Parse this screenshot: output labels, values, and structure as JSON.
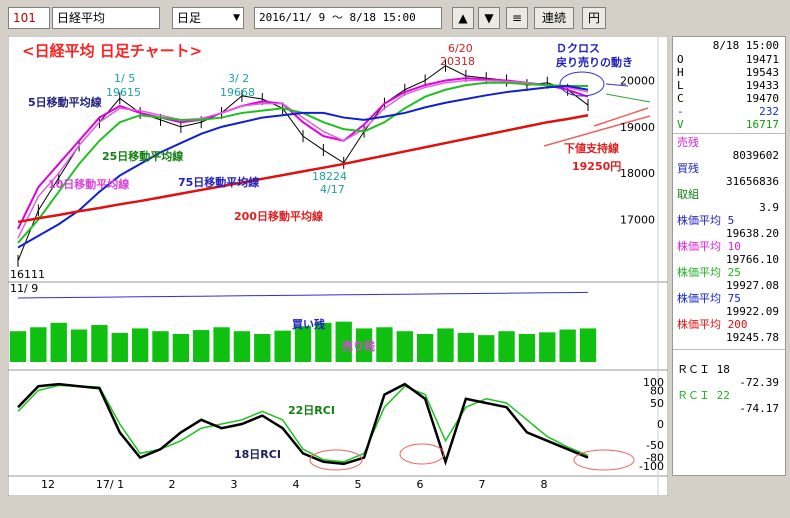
{
  "toolbar": {
    "code": "101",
    "name": "日経平均",
    "period": "日足",
    "date_range": "2016/11/ 9 ～  8/18 15:00",
    "up_icon": "triangle-up-icon",
    "down_icon": "triangle-down-icon",
    "menu_icon": "hamburger-icon",
    "continuous_label": "連続",
    "yen_label": "円"
  },
  "colors": {
    "ma5": "#e000e0",
    "ma25": "#20c020",
    "ma75": "#1020d0",
    "ma200": "#e01010",
    "price": "#000000",
    "annotation": "#f06060"
  },
  "chart_data": {
    "type": "line",
    "title": "<日経平均  日足チャート>",
    "ylim": [
      16000,
      20700
    ],
    "y_ticks": [
      "20000",
      "19000",
      "18000",
      "17000"
    ],
    "x_ticks": [
      "12",
      "17/ 1",
      "2",
      "3",
      "4",
      "5",
      "6",
      "7",
      "8"
    ],
    "rci_ticks": [
      "100",
      "80",
      "50",
      "0",
      "-50",
      "-80",
      "-100"
    ],
    "series": [
      {
        "name": "5日移動平均線",
        "values": [
          16800,
          17700,
          18200,
          18700,
          19200,
          19450,
          19300,
          19200,
          19100,
          19150,
          19300,
          19450,
          19550,
          19500,
          19100,
          18800,
          18700,
          19050,
          19500,
          19750,
          19900,
          20000,
          20050,
          20020,
          20000,
          19950,
          19900,
          19800,
          19650
        ]
      },
      {
        "name": "10日移動平均線",
        "values": [
          16600,
          17500,
          18000,
          18600,
          19100,
          19400,
          19350,
          19250,
          19150,
          19180,
          19300,
          19450,
          19500,
          19500,
          19200,
          18900,
          18700,
          18950,
          19400,
          19700,
          19850,
          19950,
          20000,
          20000,
          19980,
          19950,
          19900,
          19850,
          19750
        ]
      },
      {
        "name": "25日移動平均線",
        "values": [
          16500,
          17000,
          17600,
          18200,
          18700,
          19100,
          19250,
          19200,
          19150,
          19150,
          19200,
          19300,
          19350,
          19400,
          19300,
          19100,
          18950,
          18900,
          19100,
          19400,
          19650,
          19800,
          19900,
          19950,
          19950,
          19920,
          19900,
          19880,
          19880
        ]
      },
      {
        "name": "75日移動平均線",
        "values": [
          16400,
          16650,
          16900,
          17200,
          17600,
          17950,
          18200,
          18450,
          18650,
          18850,
          19000,
          19100,
          19200,
          19250,
          19300,
          19300,
          19200,
          19150,
          19220,
          19300,
          19420,
          19520,
          19600,
          19680,
          19750,
          19800,
          19850,
          19880,
          19800
        ]
      },
      {
        "name": "200日移動平均線",
        "values": [
          16950,
          17030,
          17100,
          17180,
          17250,
          17330,
          17400,
          17480,
          17560,
          17640,
          17720,
          17800,
          17880,
          17960,
          18040,
          18120,
          18200,
          18290,
          18380,
          18470,
          18560,
          18650,
          18740,
          18830,
          18920,
          19010,
          19100,
          19170,
          19250
        ]
      }
    ],
    "price": [
      16111,
      17200,
      17900,
      18600,
      19100,
      19615,
      19300,
      19150,
      19000,
      19100,
      19300,
      19668,
      19600,
      19400,
      18800,
      18500,
      18224,
      18900,
      19500,
      19800,
      20000,
      20318,
      20100,
      20050,
      20000,
      19900,
      19950,
      19800,
      19470
    ],
    "volume": [
      0.55,
      0.62,
      0.7,
      0.58,
      0.66,
      0.52,
      0.6,
      0.55,
      0.5,
      0.57,
      0.62,
      0.55,
      0.5,
      0.56,
      0.64,
      0.7,
      0.72,
      0.6,
      0.62,
      0.55,
      0.5,
      0.6,
      0.52,
      0.48,
      0.55,
      0.5,
      0.53,
      0.58,
      0.6
    ],
    "rci18": [
      40,
      90,
      95,
      90,
      85,
      -20,
      -80,
      -60,
      -20,
      10,
      -10,
      0,
      20,
      -10,
      -70,
      -90,
      -95,
      -80,
      70,
      95,
      60,
      -90,
      60,
      50,
      40,
      -20,
      -40,
      -60,
      -80
    ],
    "rci22": [
      30,
      80,
      92,
      90,
      88,
      0,
      -70,
      -60,
      -40,
      -10,
      0,
      10,
      30,
      10,
      -60,
      -85,
      -90,
      -70,
      40,
      90,
      70,
      -40,
      40,
      60,
      50,
      10,
      -30,
      -55,
      -75
    ],
    "labels": {
      "ma5": "5日移動平均線",
      "ma10": "10日移動平均線",
      "ma25": "25日移動平均線",
      "ma75": "75日移動平均線",
      "ma200": "200日移動平均線",
      "buy": "買い残",
      "sell": "売り残",
      "rci22": "22日RCI",
      "rci18": "18日RCI",
      "dcross": "Ｄクロス",
      "sell_back": "戻り売りの動き",
      "support_line": "下値支持線",
      "support_price": "19250円",
      "peak1_date": "1/ 5",
      "peak1_value": "19615",
      "peak2_date": "3/ 2",
      "peak2_value": "19668",
      "peak3_date": "6/20",
      "peak3_value": "20318",
      "low2_value": "18224",
      "low2_date": "4/17",
      "low1_value": "16111",
      "low1_date": "11/ 9"
    }
  },
  "side": {
    "date": "8/18  15:00",
    "o_label": "O",
    "o": "19471",
    "h_label": "H",
    "h": "19543",
    "l_label": "L",
    "l": "19433",
    "c_label": "C",
    "c": "19470",
    "chg_label": "-",
    "chg": "232",
    "v_label": "V",
    "v": "16717",
    "sell_label": "売残",
    "sell": "8039602",
    "buy_label": "買残",
    "buy": "31656836",
    "ratio_label": "取組",
    "ratio": "3.9",
    "ma5_label": "株価平均  5",
    "ma5": "19638.20",
    "ma10_label": "株価平均 10",
    "ma10": "19766.10",
    "ma25_label": "株価平均 25",
    "ma25": "19927.08",
    "ma75_label": "株価平均 75",
    "ma75": "19922.09",
    "ma200_label": "株価平均 200",
    "ma200": "19245.78",
    "rci18_label": "ＲＣＩ  18",
    "rci18": "-72.39",
    "rci22_label": "ＲＣＩ  22",
    "rci22": "-74.17"
  }
}
